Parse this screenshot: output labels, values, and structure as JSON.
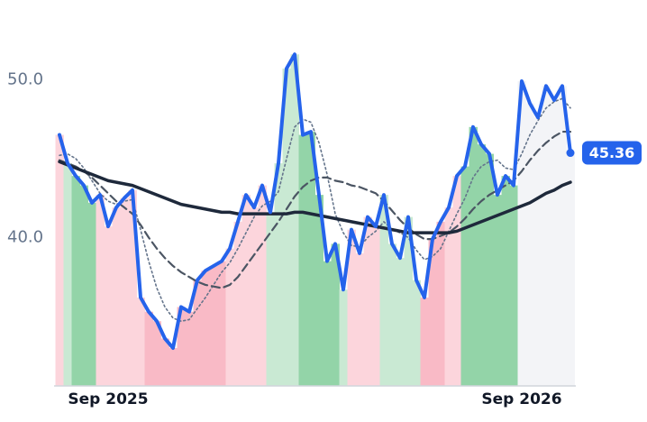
{
  "chart_data": {
    "type": "line",
    "x": [
      0,
      1,
      2,
      3,
      4,
      5,
      6,
      7,
      8,
      9,
      10,
      11,
      12,
      13,
      14,
      15,
      16,
      17,
      18,
      19,
      20,
      21,
      22,
      23,
      24,
      25,
      26,
      27,
      28,
      29,
      30,
      31,
      32,
      33,
      34,
      35,
      36,
      37,
      38,
      39,
      40,
      41,
      42,
      43,
      44,
      45,
      46,
      47,
      48,
      49,
      50,
      51,
      52,
      53,
      54,
      55,
      56,
      57,
      58,
      59,
      60,
      61,
      62,
      63
    ],
    "xlim": [
      0,
      63
    ],
    "xticks": [
      {
        "value": 6,
        "label": "Sep 2025"
      },
      {
        "value": 57,
        "label": "Sep 2026"
      }
    ],
    "ylim": [
      30.6,
      53.9
    ],
    "yticks": [
      {
        "value": 40,
        "label": "40.0"
      },
      {
        "value": 50,
        "label": "50.0"
      }
    ],
    "series": [
      {
        "color": "#2563eb",
        "style": "solid",
        "width": 4,
        "values": [
          46.5,
          44.7,
          43.9,
          43.3,
          42.2,
          42.7,
          40.7,
          41.9,
          42.5,
          43.0,
          36.2,
          35.3,
          34.7,
          33.6,
          33.0,
          35.6,
          35.3,
          37.3,
          37.9,
          38.2,
          38.5,
          39.3,
          41.0,
          42.7,
          41.9,
          43.3,
          41.6,
          44.7,
          50.7,
          51.6,
          46.5,
          46.7,
          42.7,
          38.5,
          39.6,
          36.7,
          40.5,
          39.0,
          41.3,
          40.7,
          42.7,
          39.6,
          38.7,
          41.3,
          37.3,
          36.2,
          39.9,
          41.0,
          41.9,
          43.9,
          44.5,
          47.0,
          45.9,
          45.3,
          42.7,
          43.9,
          43.3,
          49.9,
          48.5,
          47.6,
          49.6,
          48.7,
          49.6,
          45.36
        ]
      },
      {
        "color": "#1e293b",
        "style": "solid",
        "width": 3.5,
        "values": [
          44.8,
          44.6,
          44.4,
          44.2,
          44.0,
          43.8,
          43.6,
          43.5,
          43.4,
          43.3,
          43.1,
          42.9,
          42.7,
          42.5,
          42.3,
          42.1,
          42.0,
          41.9,
          41.8,
          41.7,
          41.6,
          41.6,
          41.5,
          41.5,
          41.5,
          41.5,
          41.5,
          41.5,
          41.5,
          41.6,
          41.6,
          41.5,
          41.4,
          41.3,
          41.2,
          41.1,
          41.0,
          40.9,
          40.8,
          40.7,
          40.6,
          40.5,
          40.4,
          40.3,
          40.3,
          40.3,
          40.3,
          40.3,
          40.3,
          40.4,
          40.6,
          40.8,
          41.0,
          41.2,
          41.4,
          41.6,
          41.8,
          42.0,
          42.2,
          42.5,
          42.8,
          43.0,
          43.3,
          43.5
        ]
      },
      {
        "color": "#4b5563",
        "style": "dashed",
        "width": 2.2,
        "values": [
          44.9,
          44.7,
          44.5,
          44.2,
          43.8,
          43.3,
          42.8,
          42.3,
          41.9,
          41.5,
          40.8,
          40.0,
          39.3,
          38.7,
          38.2,
          37.8,
          37.5,
          37.2,
          37.0,
          36.9,
          36.8,
          37.0,
          37.5,
          38.2,
          38.9,
          39.6,
          40.3,
          41.0,
          41.8,
          42.6,
          43.2,
          43.6,
          43.8,
          43.8,
          43.6,
          43.5,
          43.3,
          43.2,
          43.0,
          42.8,
          42.3,
          41.7,
          41.1,
          40.6,
          40.2,
          39.9,
          39.9,
          40.1,
          40.3,
          40.7,
          41.2,
          41.8,
          42.3,
          42.7,
          43.0,
          43.3,
          43.6,
          44.2,
          44.9,
          45.5,
          46.0,
          46.4,
          46.7,
          46.7
        ]
      },
      {
        "color": "#64748b",
        "style": "dotted",
        "width": 1.6,
        "values": [
          45.2,
          45.3,
          45.0,
          44.4,
          43.6,
          42.8,
          42.3,
          42.1,
          42.3,
          42.4,
          40.5,
          38.5,
          36.8,
          35.6,
          34.9,
          34.7,
          34.8,
          35.5,
          36.2,
          37.0,
          37.8,
          38.4,
          39.3,
          40.3,
          41.3,
          42.0,
          42.3,
          42.9,
          45.0,
          47.0,
          47.5,
          47.3,
          46.0,
          44.0,
          41.5,
          40.3,
          39.5,
          39.4,
          40.0,
          40.4,
          41.0,
          40.5,
          40.3,
          40.0,
          39.2,
          38.6,
          38.8,
          39.3,
          40.4,
          41.5,
          42.5,
          43.8,
          44.5,
          44.8,
          44.9,
          44.4,
          44.3,
          45.3,
          46.5,
          47.4,
          48.2,
          48.6,
          48.8,
          48.2
        ]
      }
    ],
    "zones": [
      {
        "from": 0,
        "to": 0,
        "color": "#fcd5dc"
      },
      {
        "from": 1,
        "to": 1,
        "color": "#c9e9d3"
      },
      {
        "from": 2,
        "to": 4,
        "color": "#93d4a8"
      },
      {
        "from": 5,
        "to": 10,
        "color": "#fcd5dc"
      },
      {
        "from": 11,
        "to": 20,
        "color": "#f9bac6"
      },
      {
        "from": 21,
        "to": 25,
        "color": "#fcd5dc"
      },
      {
        "from": 26,
        "to": 29,
        "color": "#c9e9d3"
      },
      {
        "from": 30,
        "to": 34,
        "color": "#93d4a8"
      },
      {
        "from": 35,
        "to": 35,
        "color": "#c9e9d3"
      },
      {
        "from": 36,
        "to": 39,
        "color": "#fcd5dc"
      },
      {
        "from": 40,
        "to": 44,
        "color": "#c9e9d3"
      },
      {
        "from": 45,
        "to": 47,
        "color": "#f9bac6"
      },
      {
        "from": 48,
        "to": 49,
        "color": "#fcd5dc"
      },
      {
        "from": 50,
        "to": 56,
        "color": "#93d4a8"
      },
      {
        "from": 57,
        "to": 63,
        "color": "#f3f4f7"
      }
    ]
  }
}
